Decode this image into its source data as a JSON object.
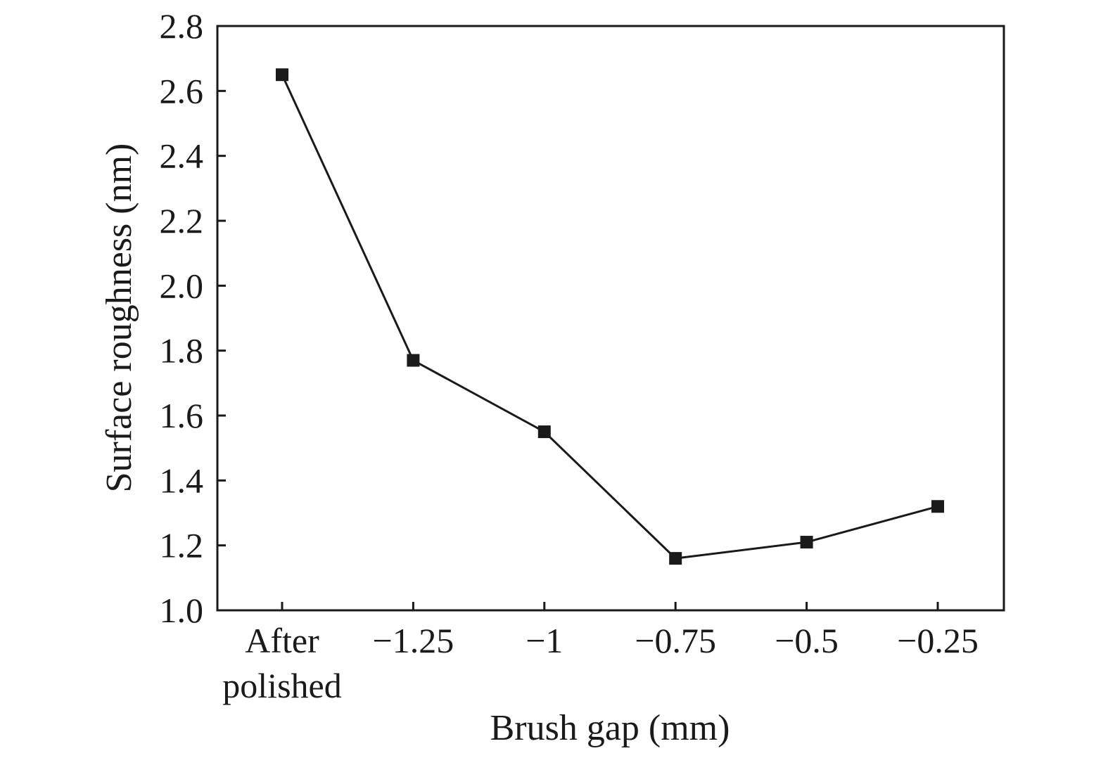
{
  "chart_data": {
    "type": "line",
    "title": "",
    "xlabel": "Brush gap (mm)",
    "ylabel": "Surface roughness (nm)",
    "categories": [
      [
        "After",
        "polished"
      ],
      [
        "−1.25"
      ],
      [
        "−1"
      ],
      [
        "−0.75"
      ],
      [
        "−0.5"
      ],
      [
        "−0.25"
      ]
    ],
    "series": [
      {
        "values": [
          2.65,
          1.77,
          1.55,
          1.16,
          1.21,
          1.32
        ],
        "color": "#1a1a1a",
        "marker": "square"
      }
    ],
    "ylim": [
      1.0,
      2.8
    ],
    "yticks": [
      "1.0",
      "1.2",
      "1.4",
      "1.6",
      "1.8",
      "2.0",
      "2.2",
      "2.4",
      "2.6",
      "2.8"
    ],
    "grid": false,
    "legend": "none"
  }
}
